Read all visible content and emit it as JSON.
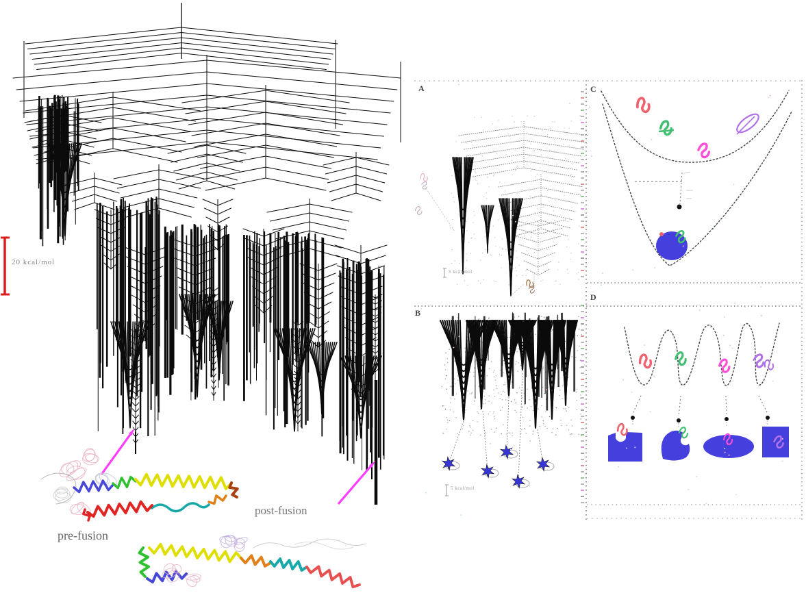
{
  "figure": {
    "main_graph": {
      "scale_bar_label": "20 kcal/mol",
      "prefusion_label": "pre-fusion",
      "postfusion_label": "post-fusion"
    },
    "panels": {
      "a": {
        "letter": "A",
        "scale_label": "5 kcal/mol"
      },
      "b": {
        "letter": "B",
        "scale_label": "5 kcal/mol"
      },
      "c": {
        "letter": "C"
      },
      "d": {
        "letter": "D"
      }
    }
  },
  "colors": {
    "tree": "#0b0b0b",
    "panel_tree_light": "#8f8f8f",
    "scale_bar_red": "#dd1c1c",
    "arrow_magenta": "#ff3cff",
    "blob_blue": "#4540dd",
    "star_blue": "#3636d8",
    "squiggle_red": "#f1626f",
    "squiggle_green": "#3fbf6f",
    "squiggle_magenta": "#ff4fd8",
    "squiggle_purple": "#b070e8",
    "ribbon_blue": "#4747d8",
    "ribbon_green": "#2fc12f",
    "ribbon_yellow": "#dede00",
    "ribbon_red": "#e02525",
    "ribbon_teal": "#18a8a8",
    "ribbon_orange": "#e08018",
    "ribbon_brown": "#a84010",
    "ribbon_pink": "#e8b4c8",
    "ribbon_lavender": "#c4b2de",
    "ribbon_salmon": "#e85050"
  }
}
